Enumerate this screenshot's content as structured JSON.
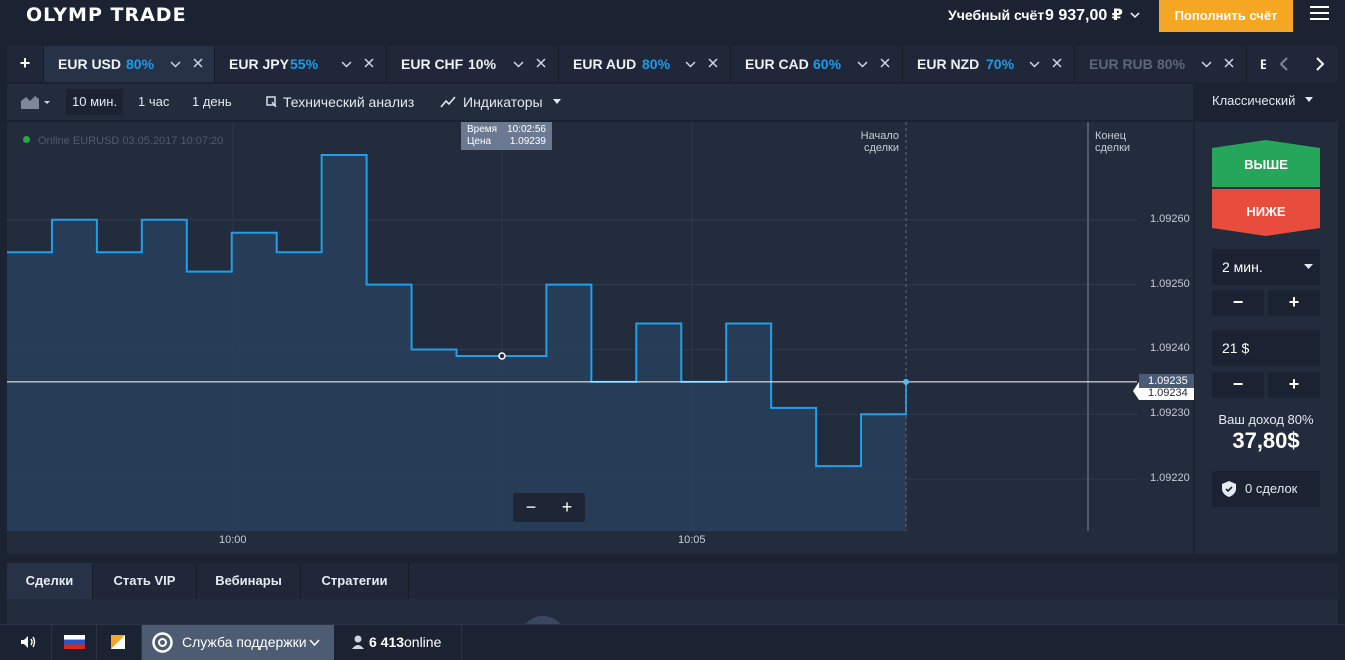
{
  "header": {
    "logo": "OLYMP TRADE",
    "account_label": "Учебный счёт",
    "balance": "9 937,00 ₽",
    "deposit_button": "Пополнить счёт"
  },
  "asset_tabs": [
    {
      "symbol": "EUR USD",
      "percent": "80%",
      "active": true
    },
    {
      "symbol": "EUR JPY",
      "percent": "55%"
    },
    {
      "symbol": "EUR CHF",
      "percent": "10%"
    },
    {
      "symbol": "EUR AUD",
      "percent": "80%"
    },
    {
      "symbol": "EUR CAD",
      "percent": "60%"
    },
    {
      "symbol": "EUR NZD",
      "percent": "70%"
    },
    {
      "symbol": "EUR RUB",
      "percent": "80%",
      "disabled": true
    },
    {
      "symbol": "E"
    }
  ],
  "add_tab_label": "+",
  "toolbar": {
    "timeframes": [
      "10 мин.",
      "1 час",
      "1 день"
    ],
    "active_timeframe": "10 мин.",
    "technical_analysis": "Технический анализ",
    "indicators": "Индикаторы",
    "view_mode": "Классический"
  },
  "chart": {
    "status": "Online EURUSD 03.05.2017 10:07:20",
    "tooltip": {
      "time_label": "Время",
      "time_value": "10:02:56",
      "price_label": "Цена",
      "price_value": "1.09239"
    },
    "trade_start_label_1": "Начало",
    "trade_start_label_2": "сделки",
    "trade_end_label_1": "Конец",
    "trade_end_label_2": "сделки",
    "price_ticks": [
      "1.09260",
      "1.09250",
      "1.09240",
      "1.09230",
      "1.09220"
    ],
    "current_price": "1.09235",
    "current_price_shadow": "1.09234",
    "time_ticks": [
      "10:00",
      "10:05"
    ],
    "zoom_out": "−",
    "zoom_in": "+",
    "line_color": "#1ea0ec"
  },
  "chart_data": {
    "type": "area",
    "x": [
      "09:57:30",
      "09:58:00",
      "09:58:30",
      "09:59:00",
      "09:59:30",
      "10:00:00",
      "10:00:30",
      "10:01:00",
      "10:01:30",
      "10:02:00",
      "10:02:30",
      "10:03:00",
      "10:03:30",
      "10:04:00",
      "10:04:30",
      "10:05:00",
      "10:05:30",
      "10:06:00",
      "10:06:30",
      "10:07:00",
      "10:07:20"
    ],
    "y": [
      1.09255,
      1.0926,
      1.09255,
      1.0926,
      1.09252,
      1.09258,
      1.09255,
      1.0927,
      1.0925,
      1.0924,
      1.09239,
      1.09239,
      1.0925,
      1.09235,
      1.09244,
      1.09235,
      1.09244,
      1.09231,
      1.09222,
      1.0923,
      1.09235
    ],
    "ylim": [
      1.09212,
      1.09272
    ],
    "xticks": [
      "10:00",
      "10:05"
    ]
  },
  "side_panel": {
    "up_button": "ВЫШЕ",
    "down_button": "НИЖЕ",
    "up_color": "#26a65b",
    "down_color": "#e74c3c",
    "expiration": "2 мин.",
    "amount": "21 $",
    "minus": "−",
    "plus": "+",
    "income_label": "Ваш доход 80%",
    "income_value": "37,80$",
    "deals": "0 сделок"
  },
  "bottom_tabs": [
    "Сделки",
    "Стать VIP",
    "Вебинары",
    "Стратегии"
  ],
  "footer": {
    "support": "Служба поддержки",
    "online_count": "6 413",
    "online_label": "online"
  }
}
